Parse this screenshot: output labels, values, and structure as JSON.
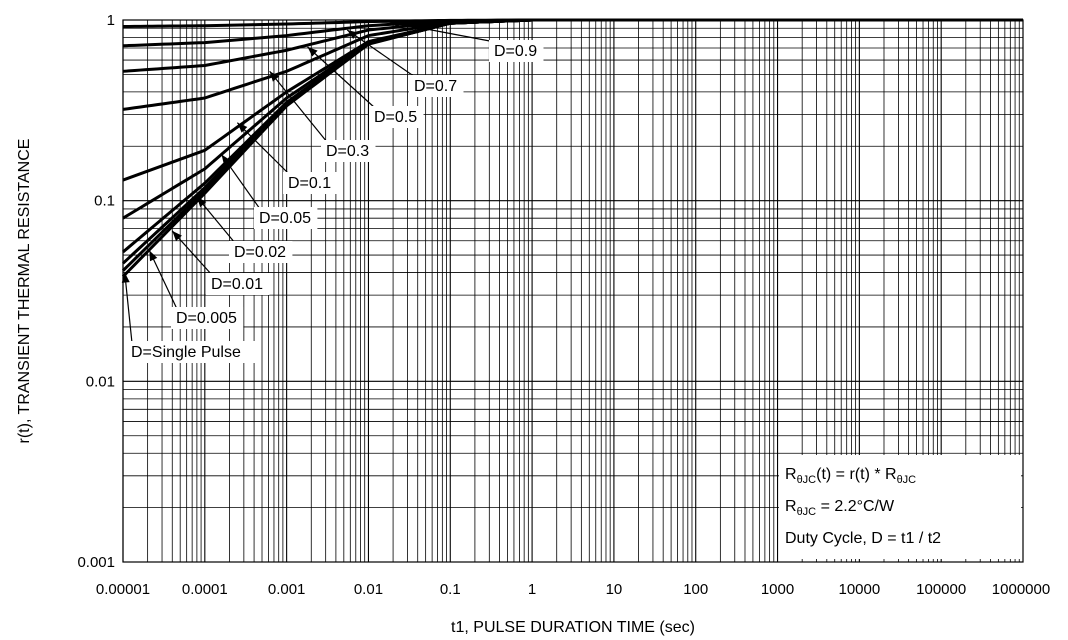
{
  "chart_data": {
    "type": "line",
    "xlabel": "t1, PULSE DURATION TIME (sec)",
    "ylabel": "r(t), TRANSIENT THERMAL RESISTANCE",
    "x_scale": "log",
    "y_scale": "log",
    "xlim": [
      1e-05,
      1000000
    ],
    "ylim": [
      0.001,
      1
    ],
    "grid": true,
    "x_tick_labels": [
      "0.00001",
      "0.0001",
      "0.001",
      "0.01",
      "0.1",
      "1",
      "10",
      "100",
      "1000",
      "10000",
      "100000",
      "1000000"
    ],
    "y_tick_labels": [
      "0.001",
      "0.01",
      "0.1",
      "1"
    ],
    "series": [
      {
        "name": "D=0.9",
        "x": [
          1e-05,
          0.0001,
          0.001,
          0.01,
          0.1,
          1,
          1000000
        ],
        "y": [
          0.92,
          0.93,
          0.95,
          0.98,
          0.995,
          1.0,
          1.0
        ]
      },
      {
        "name": "D=0.7",
        "x": [
          1e-05,
          0.0001,
          0.001,
          0.01,
          0.1,
          1,
          1000000
        ],
        "y": [
          0.72,
          0.75,
          0.82,
          0.93,
          0.99,
          1.0,
          1.0
        ]
      },
      {
        "name": "D=0.5",
        "x": [
          1e-05,
          0.0001,
          0.001,
          0.01,
          0.1,
          1,
          1000000
        ],
        "y": [
          0.52,
          0.56,
          0.68,
          0.88,
          0.98,
          1.0,
          1.0
        ]
      },
      {
        "name": "D=0.3",
        "x": [
          1e-05,
          0.0001,
          0.001,
          0.01,
          0.1,
          1,
          1000000
        ],
        "y": [
          0.32,
          0.37,
          0.52,
          0.82,
          0.97,
          1.0,
          1.0
        ]
      },
      {
        "name": "D=0.1",
        "x": [
          1e-05,
          0.0001,
          0.001,
          0.01,
          0.1,
          1,
          1000000
        ],
        "y": [
          0.13,
          0.19,
          0.4,
          0.76,
          0.96,
          1.0,
          1.0
        ]
      },
      {
        "name": "D=0.05",
        "x": [
          1e-05,
          0.0001,
          0.001,
          0.01,
          0.1,
          1,
          1000000
        ],
        "y": [
          0.08,
          0.15,
          0.37,
          0.75,
          0.96,
          1.0,
          1.0
        ]
      },
      {
        "name": "D=0.02",
        "x": [
          1e-05,
          0.0001,
          0.001,
          0.01,
          0.1,
          1,
          1000000
        ],
        "y": [
          0.052,
          0.125,
          0.35,
          0.74,
          0.96,
          1.0,
          1.0
        ]
      },
      {
        "name": "D=0.01",
        "x": [
          1e-05,
          0.0001,
          0.001,
          0.01,
          0.1,
          1,
          1000000
        ],
        "y": [
          0.045,
          0.118,
          0.345,
          0.74,
          0.96,
          1.0,
          1.0
        ]
      },
      {
        "name": "D=0.005",
        "x": [
          1e-05,
          0.0001,
          0.001,
          0.01,
          0.1,
          1,
          1000000
        ],
        "y": [
          0.041,
          0.114,
          0.34,
          0.74,
          0.96,
          1.0,
          1.0
        ]
      },
      {
        "name": "D=Single Pulse",
        "x": [
          1e-05,
          0.0001,
          0.001,
          0.01,
          0.1,
          1,
          1000000
        ],
        "y": [
          0.038,
          0.11,
          0.335,
          0.735,
          0.96,
          1.0,
          1.0
        ]
      }
    ],
    "curve_labels": [
      {
        "text": "D=0.9",
        "anchor": [
          0.018,
          0.975
        ]
      },
      {
        "text": "D=0.7",
        "anchor": [
          0.0055,
          0.88
        ]
      },
      {
        "text": "D=0.5",
        "anchor": [
          0.0018,
          0.71
        ]
      },
      {
        "text": "D=0.3",
        "anchor": [
          0.00062,
          0.52
        ]
      },
      {
        "text": "D=0.1",
        "anchor": [
          0.00025,
          0.27
        ]
      },
      {
        "text": "D=0.05",
        "anchor": [
          0.00016,
          0.18
        ]
      },
      {
        "text": "D=0.02",
        "anchor": [
          8e-05,
          0.105
        ]
      },
      {
        "text": "D=0.01",
        "anchor": [
          4e-05,
          0.068
        ]
      },
      {
        "text": "D=0.005",
        "anchor": [
          2.1e-05,
          0.053
        ]
      },
      {
        "text": "D=Single Pulse",
        "anchor": [
          1.05e-05,
          0.04
        ]
      }
    ],
    "notes": {
      "line1": {
        "main": "R",
        "sub": "θJC",
        "rest": "(t) = r(t) * R",
        "sub2": "θJC"
      },
      "line2": {
        "main": "R",
        "sub": "θJC",
        "rest": " = 2.2°C/W"
      },
      "line3": "Duty Cycle, D = t1 / t2"
    },
    "colors": {
      "line": "#000000",
      "grid": "#000000",
      "background": "#ffffff"
    }
  }
}
